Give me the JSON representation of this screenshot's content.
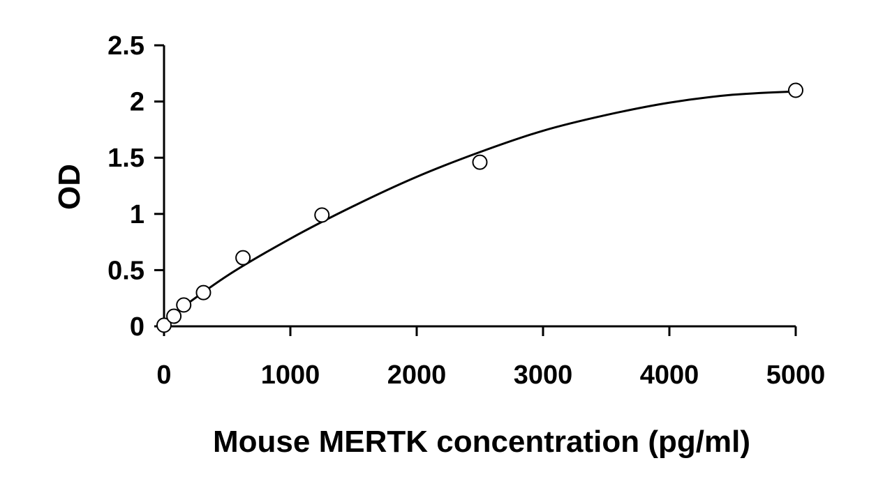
{
  "chart_data": {
    "type": "scatter",
    "title": "",
    "xlabel": "Mouse MERTK concentration (pg/ml)",
    "ylabel": "OD",
    "xlim": [
      0,
      5000
    ],
    "ylim": [
      0,
      2.5
    ],
    "x_ticks": [
      0,
      1000,
      2000,
      3000,
      4000,
      5000
    ],
    "x_tick_labels": [
      "0",
      "1000",
      "2000",
      "3000",
      "4000",
      "5000"
    ],
    "y_ticks": [
      0,
      0.5,
      1,
      1.5,
      2,
      2.5
    ],
    "y_tick_labels": [
      "0",
      "0.5",
      "1",
      "1.5",
      "2",
      "2.5"
    ],
    "grid": false,
    "legend": "none",
    "series": [
      {
        "x": [
          0,
          78,
          156,
          312,
          625,
          1250,
          2500,
          5000
        ],
        "y": [
          0.01,
          0.09,
          0.19,
          0.3,
          0.61,
          0.99,
          1.46,
          2.1
        ]
      }
    ],
    "fit": {
      "x": [
        0,
        500,
        1000,
        1500,
        2000,
        2500,
        3000,
        3500,
        4000,
        4500,
        5000
      ],
      "y": [
        0.05,
        0.45,
        0.78,
        1.07,
        1.33,
        1.55,
        1.74,
        1.88,
        1.99,
        2.06,
        2.09
      ]
    },
    "colors": {
      "axis": "#000000",
      "marker_fill": "#ffffff",
      "marker_stroke": "#000000",
      "curve": "#000000"
    }
  }
}
